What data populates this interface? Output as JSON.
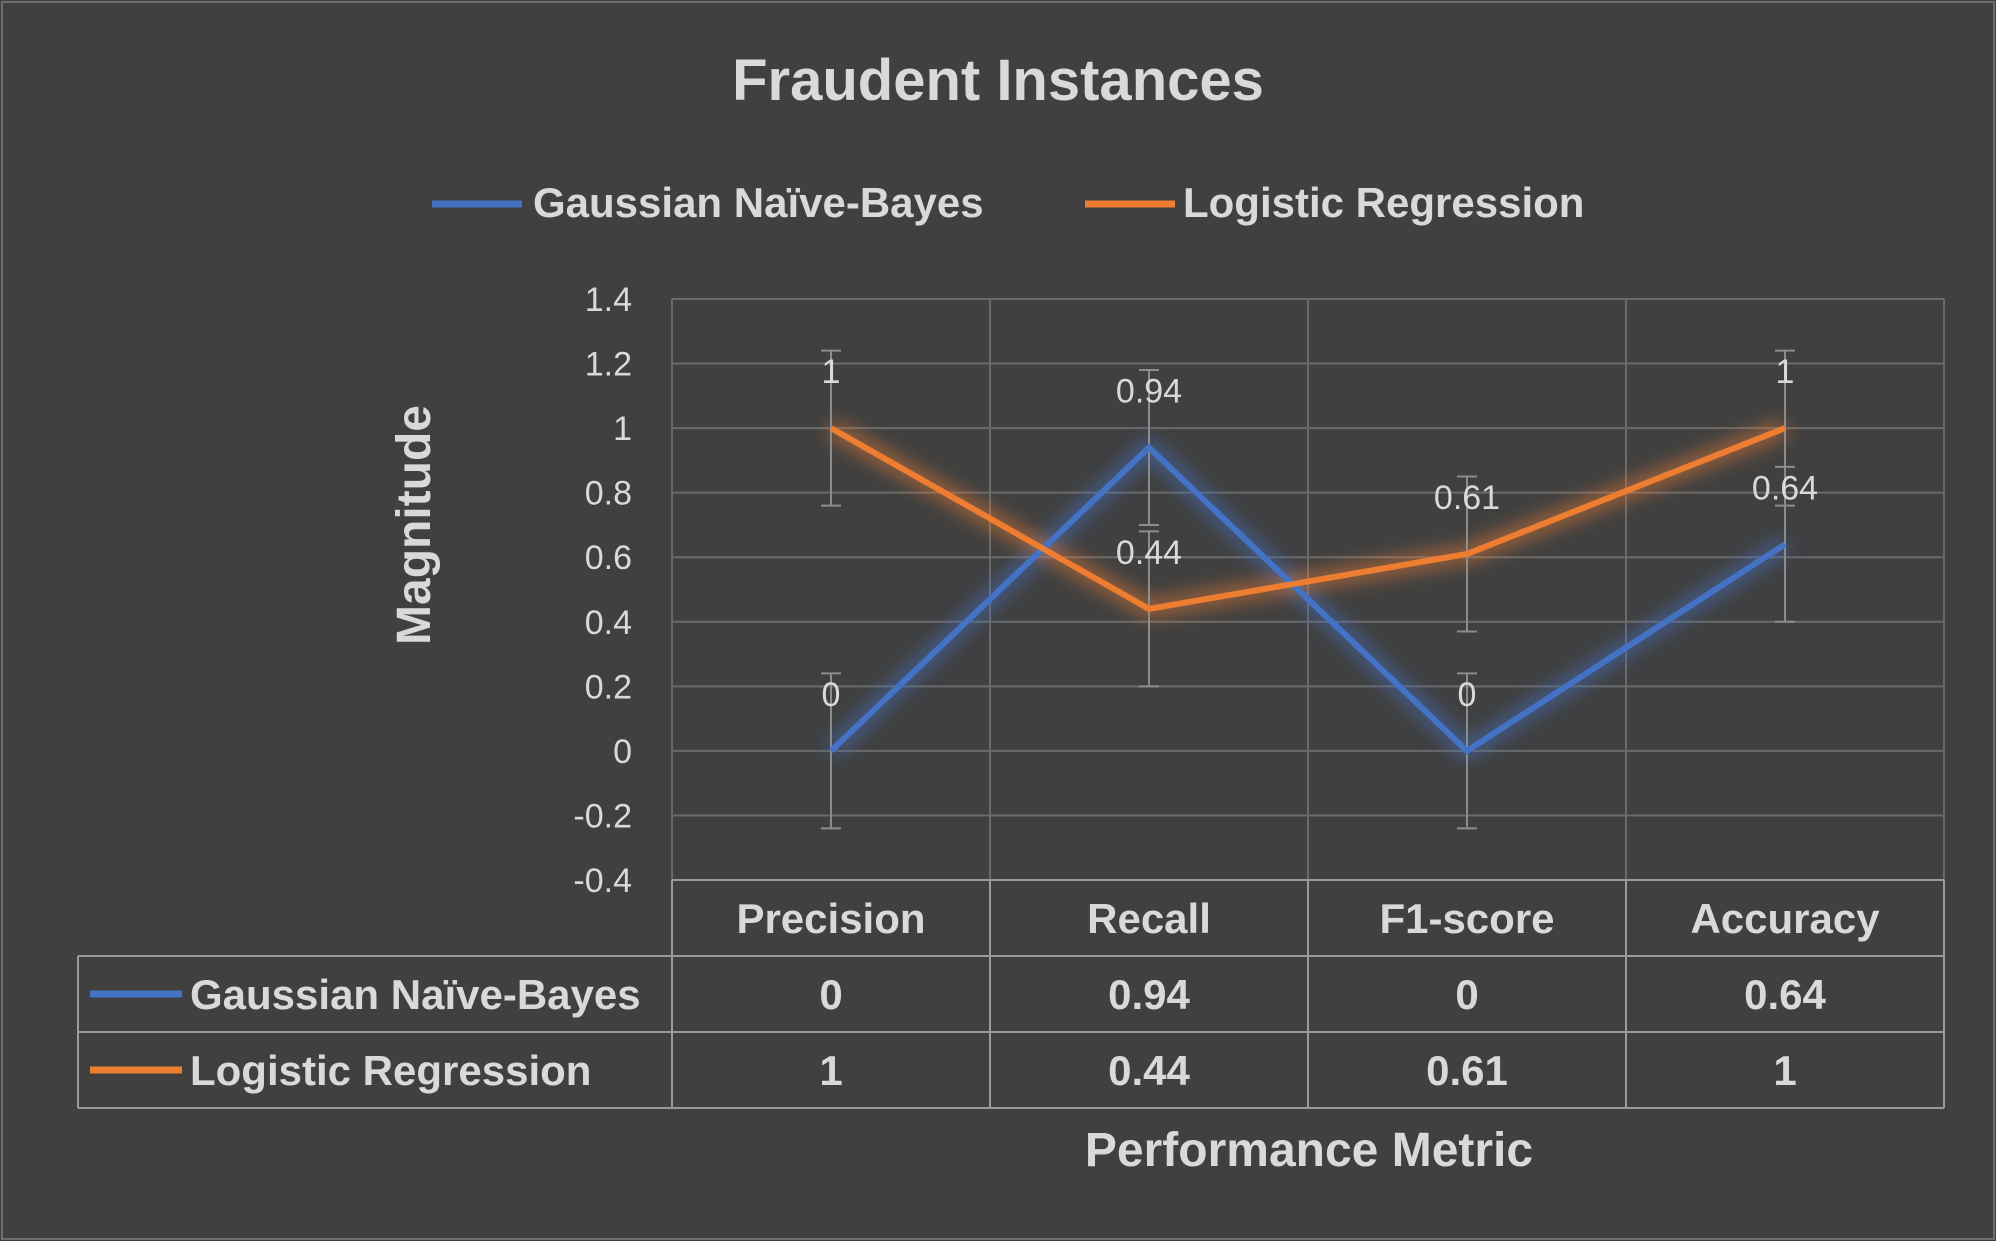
{
  "chart_data": {
    "type": "line",
    "title": "Fraudent Instances",
    "xlabel": "Performance Metric",
    "ylabel": "Magnitude",
    "categories": [
      "Precision",
      "Recall",
      "F1-score",
      "Accuracy"
    ],
    "ylim": [
      -0.4,
      1.4
    ],
    "ytick_step": 0.2,
    "yticks": [
      "1.4",
      "1.2",
      "1",
      "0.8",
      "0.6",
      "0.4",
      "0.2",
      "0",
      "-0.2",
      "-0.4"
    ],
    "grid": true,
    "legend_position": "top",
    "error_bar": 0.24,
    "data_table": true,
    "series": [
      {
        "name": "Gaussian Naïve-Bayes",
        "color": "#4472C4",
        "values": [
          0,
          0.94,
          0,
          0.64
        ],
        "labels": [
          "0",
          "0.94",
          "0",
          "0.64"
        ]
      },
      {
        "name": "Logistic Regression",
        "color": "#ED7D31",
        "values": [
          1,
          0.44,
          0.61,
          1
        ],
        "labels": [
          "1",
          "0.44",
          "0.61",
          "1"
        ]
      }
    ]
  }
}
